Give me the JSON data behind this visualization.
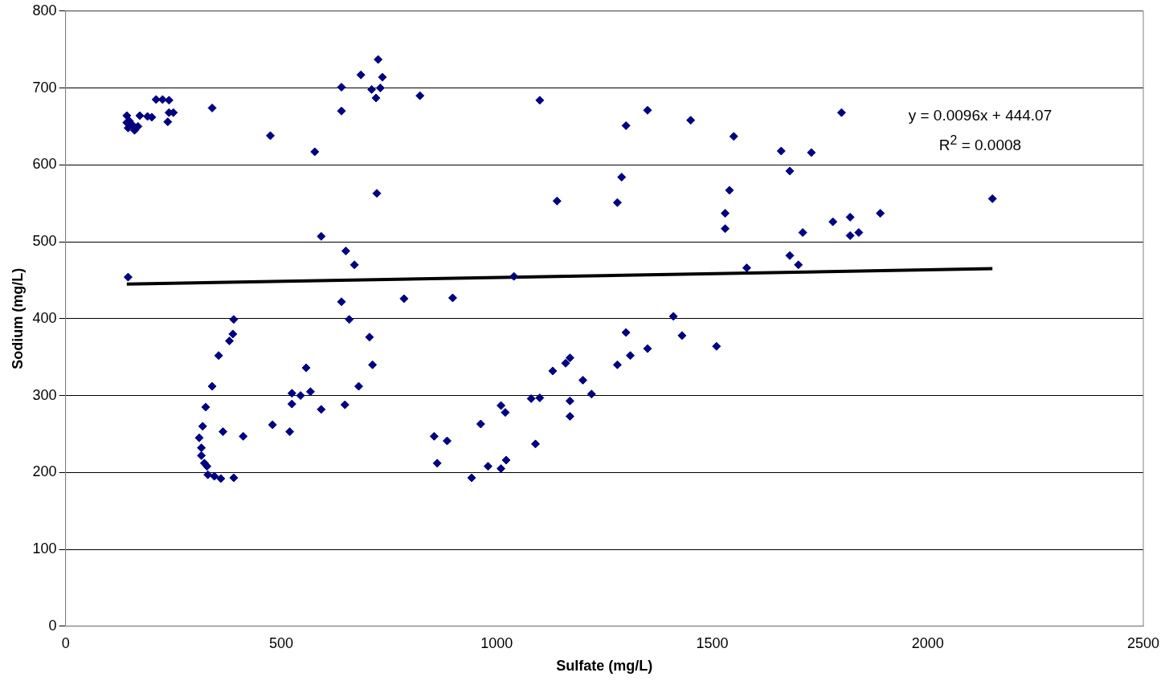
{
  "chart_data": {
    "type": "scatter",
    "xlabel": "Sulfate (mg/L)",
    "ylabel": "Sodium (mg/L)",
    "xlim": [
      0,
      2500
    ],
    "xticks": [
      0,
      500,
      1000,
      1500,
      2000,
      2500
    ],
    "ylim": [
      0,
      800
    ],
    "yticks": [
      0,
      100,
      200,
      300,
      400,
      500,
      600,
      700,
      800
    ],
    "grid": "y",
    "legend": false,
    "annotations": [
      "y = 0.0096x + 444.07",
      "R$^{2}$ = 0.0008"
    ],
    "series": [
      {
        "marker": "diamond",
        "color": "#000080",
        "x": [
          142,
          142,
          145,
          148,
          155,
          160,
          168,
          172,
          190,
          200,
          210,
          225,
          240,
          237,
          240,
          250,
          145,
          340,
          475,
          578,
          640,
          640,
          685,
          710,
          720,
          725,
          730,
          735,
          722,
          822,
          1100,
          310,
          315,
          315,
          318,
          322,
          325,
          328,
          330,
          340,
          345,
          355,
          360,
          365,
          380,
          388,
          390,
          390,
          412,
          480,
          520,
          525,
          525,
          545,
          558,
          568,
          593,
          593,
          640,
          648,
          650,
          658,
          670,
          680,
          705,
          712,
          785,
          855,
          862,
          885,
          898,
          942,
          963,
          980,
          1010,
          1010,
          1020,
          1022,
          1040,
          1080,
          1090,
          1100,
          1130,
          1140,
          1160,
          1170,
          1170,
          1170,
          1200,
          1220,
          1280,
          1280,
          1290,
          1300,
          1300,
          1310,
          1350,
          1350,
          1410,
          1430,
          1450,
          1510,
          1530,
          1530,
          1540,
          1550,
          1580,
          1660,
          1680,
          1680,
          1700,
          1710,
          1730,
          1780,
          1800,
          1820,
          1820,
          1840,
          1890,
          2150
        ],
        "values": [
          664,
          655,
          648,
          657,
          652,
          645,
          650,
          664,
          663,
          662,
          685,
          685,
          684,
          656,
          668,
          668,
          454,
          674,
          638,
          617,
          701,
          670,
          717,
          698,
          687,
          737,
          700,
          714,
          563,
          690,
          684,
          245,
          232,
          222,
          260,
          212,
          285,
          208,
          197,
          312,
          195,
          352,
          192,
          253,
          371,
          380,
          399,
          193,
          247,
          262,
          253,
          303,
          289,
          300,
          336,
          305,
          282,
          507,
          422,
          288,
          488,
          399,
          470,
          312,
          376,
          340,
          426,
          247,
          212,
          241,
          427,
          193,
          263,
          208,
          287,
          205,
          278,
          216,
          455,
          296,
          237,
          297,
          332,
          553,
          342,
          349,
          293,
          273,
          320,
          302,
          551,
          340,
          584,
          651,
          382,
          352,
          671,
          361,
          403,
          378,
          658,
          364,
          537,
          517,
          567,
          637,
          466,
          618,
          592,
          482,
          470,
          512,
          616,
          526,
          668,
          532,
          508,
          512,
          537,
          556
        ]
      },
      {
        "type": "line",
        "marker": "none",
        "color": "#000000",
        "x": [
          142,
          2150
        ],
        "values": [
          445,
          465
        ]
      }
    ]
  }
}
